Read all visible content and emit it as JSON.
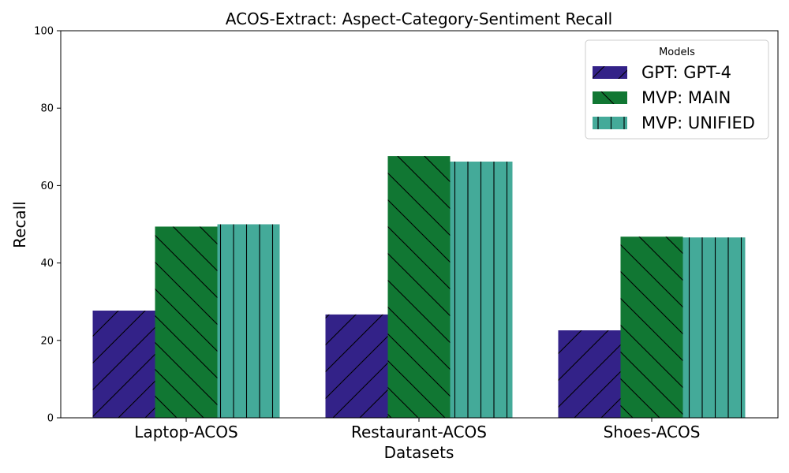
{
  "chart_data": {
    "type": "bar",
    "title": "ACOS-Extract: Aspect-Category-Sentiment Recall",
    "xlabel": "Datasets",
    "ylabel": "Recall",
    "ylim": [
      0,
      100
    ],
    "yticks": [
      0,
      20,
      40,
      60,
      80,
      100
    ],
    "grid": false,
    "categories": [
      "Laptop-ACOS",
      "Restaurant-ACOS",
      "Shoes-ACOS"
    ],
    "legend": {
      "title": "Models",
      "placement": "top-right"
    },
    "series": [
      {
        "name": "GPT: GPT-4",
        "color": "#332288",
        "hatch": "forward-diagonal",
        "values": [
          27.7,
          26.7,
          22.6
        ]
      },
      {
        "name": "MVP: MAIN",
        "color": "#117733",
        "hatch": "back-diagonal",
        "values": [
          49.4,
          67.6,
          46.8
        ]
      },
      {
        "name": "MVP: UNIFIED",
        "color": "#44AA99",
        "hatch": "vertical",
        "values": [
          50.0,
          66.2,
          46.6
        ]
      }
    ]
  }
}
